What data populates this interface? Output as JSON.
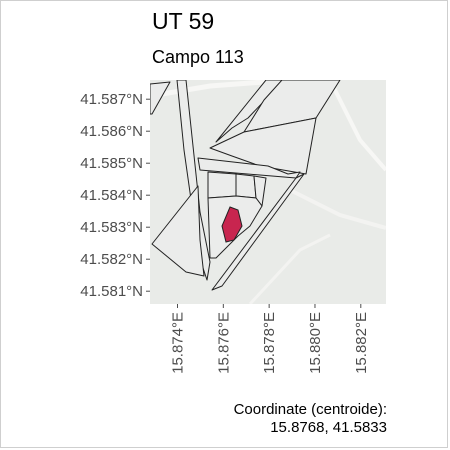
{
  "map": {
    "title": "UT 59",
    "subtitle": "Campo 113",
    "lon_range": [
      15.8728,
      15.8831
    ],
    "lat_range": [
      41.5806,
      41.5876
    ],
    "lat_ticks": [
      {
        "value": 41.587,
        "label": "41.587°N"
      },
      {
        "value": 41.586,
        "label": "41.586°N"
      },
      {
        "value": 41.585,
        "label": "41.585°N"
      },
      {
        "value": 41.584,
        "label": "41.584°N"
      },
      {
        "value": 41.583,
        "label": "41.583°N"
      },
      {
        "value": 41.582,
        "label": "41.582°N"
      },
      {
        "value": 41.581,
        "label": "41.581°N"
      }
    ],
    "lon_ticks": [
      {
        "value": 15.874,
        "label": "15.874°E"
      },
      {
        "value": 15.876,
        "label": "15.876°E"
      },
      {
        "value": 15.878,
        "label": "15.878°E"
      },
      {
        "value": 15.88,
        "label": "15.880°E"
      },
      {
        "value": 15.882,
        "label": "15.882°E"
      }
    ],
    "highlight_color": "#c8254f",
    "parcel_outline_color": "#222222",
    "basemap_color": "#e9ebe8"
  },
  "coordinates": {
    "label": "Coordinate (centroide):",
    "value": "15.8768, 41.5833"
  }
}
